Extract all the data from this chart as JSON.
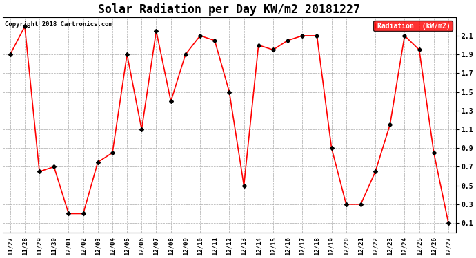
{
  "title": "Solar Radiation per Day KW/m2 20181227",
  "copyright": "Copyright 2018 Cartronics.com",
  "legend_label": "Radiation  (kW/m2)",
  "dates": [
    "11/27",
    "11/28",
    "11/29",
    "11/30",
    "12/01",
    "12/02",
    "12/03",
    "12/04",
    "12/05",
    "12/06",
    "12/07",
    "12/08",
    "12/09",
    "12/10",
    "12/11",
    "12/12",
    "12/13",
    "12/14",
    "12/15",
    "12/16",
    "12/17",
    "12/18",
    "12/19",
    "12/20",
    "12/21",
    "12/22",
    "12/23",
    "12/24",
    "12/25",
    "12/26",
    "12/27"
  ],
  "values": [
    1.9,
    2.2,
    0.65,
    0.7,
    0.2,
    0.2,
    0.75,
    0.85,
    1.9,
    1.1,
    2.15,
    1.4,
    1.9,
    2.1,
    2.05,
    1.5,
    0.5,
    2.0,
    1.95,
    2.05,
    2.1,
    2.1,
    0.9,
    0.3,
    0.3,
    0.65,
    1.15,
    2.1,
    1.95,
    0.85,
    0.1
  ],
  "line_color": "red",
  "marker_color": "black",
  "marker": "D",
  "marker_size": 3,
  "line_width": 1.2,
  "ylim": [
    0.0,
    2.3
  ],
  "yticks": [
    0.1,
    0.3,
    0.5,
    0.7,
    0.9,
    1.1,
    1.3,
    1.5,
    1.7,
    1.9,
    2.1
  ],
  "background_color": "#ffffff",
  "grid_color": "#aaaaaa",
  "title_fontsize": 12,
  "tick_fontsize": 6.5,
  "legend_bg": "red",
  "legend_text_color": "white"
}
